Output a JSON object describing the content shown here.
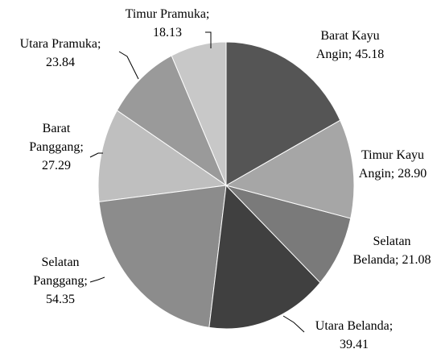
{
  "chart_data": {
    "type": "pie",
    "categories": [
      "Barat Kayu Angin;",
      "Timur Kayu Angin;",
      "Selatan Belanda;",
      "Utara Belanda;",
      "Selatan Panggang;",
      "Barat Panggang;",
      "Utara Pramuka;",
      "Timur Pramuka;"
    ],
    "values": [
      45.18,
      28.9,
      21.08,
      39.41,
      54.35,
      27.29,
      23.84,
      18.13
    ],
    "value_labels": [
      "45.18",
      "28.90",
      "21.08",
      "39.41",
      "54.35",
      "27.29",
      "23.84",
      "18.13"
    ],
    "colors": [
      "#555555",
      "#a6a6a6",
      "#7a7a7a",
      "#404040",
      "#8c8c8c",
      "#bfbfbf",
      "#9a9a9a",
      "#c8c8c8"
    ]
  }
}
